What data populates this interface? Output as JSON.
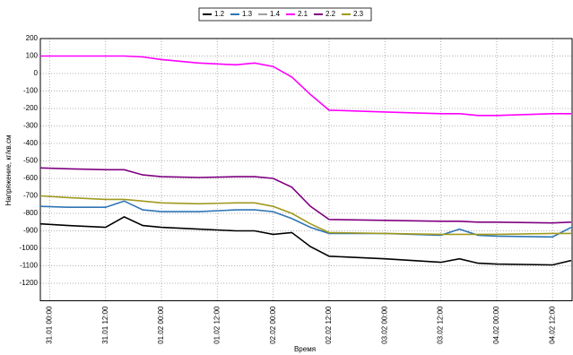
{
  "chart_data": {
    "type": "line",
    "y_label": "Напряжение, кг/кв.см",
    "x_label": "Время",
    "x": [
      "30.01 22:00",
      "31.01 04:00",
      "31.01 12:00",
      "31.01 16:00",
      "31.01 20:00",
      "01.02 00:00",
      "01.02 08:00",
      "01.02 16:00",
      "01.02 20:00",
      "02.02 00:00",
      "02.02 04:00",
      "02.02 08:00",
      "02.02 12:00",
      "03.02 00:00",
      "03.02 12:00",
      "03.02 16:00",
      "03.02 20:00",
      "04.02 00:00",
      "04.02 12:00",
      "04.02 16:00"
    ],
    "series": [
      {
        "name": "1.2",
        "color": "#000000",
        "values": [
          -860,
          -870,
          -880,
          -820,
          -870,
          -880,
          -890,
          -900,
          -900,
          -920,
          -910,
          -990,
          -1045,
          -1060,
          -1080,
          -1060,
          -1085,
          -1090,
          -1095,
          -1070
        ]
      },
      {
        "name": "1.3",
        "color": "#2e75b6",
        "values": [
          -760,
          -765,
          -765,
          -730,
          -780,
          -790,
          -790,
          -780,
          -780,
          -790,
          -830,
          -880,
          -915,
          -915,
          -925,
          -890,
          -925,
          -930,
          -935,
          -880
        ]
      },
      {
        "name": "1.4",
        "color": "#a0a0a0",
        "values": [
          null,
          null,
          null,
          null,
          null,
          null,
          null,
          null,
          null,
          null,
          null,
          null,
          null,
          null,
          null,
          null,
          null,
          null,
          null,
          null
        ]
      },
      {
        "name": "2.1",
        "color": "#ff00ff",
        "values": [
          100,
          100,
          100,
          100,
          95,
          80,
          60,
          50,
          60,
          40,
          -20,
          -120,
          -210,
          -220,
          -230,
          -230,
          -240,
          -240,
          -230,
          -230
        ]
      },
      {
        "name": "2.2",
        "color": "#800080",
        "values": [
          -540,
          -545,
          -550,
          -550,
          -580,
          -590,
          -595,
          -590,
          -590,
          -600,
          -650,
          -760,
          -835,
          -840,
          -845,
          -845,
          -850,
          -850,
          -855,
          -850
        ]
      },
      {
        "name": "2.3",
        "color": "#a09a1e",
        "values": [
          -700,
          -710,
          -720,
          -720,
          -730,
          -740,
          -745,
          -740,
          -740,
          -760,
          -800,
          -860,
          -910,
          -915,
          -920,
          -920,
          -920,
          -920,
          -915,
          -915
        ]
      }
    ],
    "xlim": [
      "30.01 22:00",
      "04.02 16:00"
    ],
    "xticks": [
      "31.01 00:00",
      "31.01 12:00",
      "01.02 00:00",
      "01.02 12:00",
      "02.02 00:00",
      "02.02 12:00",
      "03.02 00:00",
      "03.02 12:00",
      "04.02 00:00",
      "04.02 12:00"
    ],
    "ylim": [
      -1300,
      200
    ],
    "yticks": [
      200,
      100,
      0,
      -100,
      -200,
      -300,
      -400,
      -500,
      -600,
      -700,
      -800,
      -900,
      -1000,
      -1100,
      -1200
    ],
    "grid": true,
    "legend": "top"
  }
}
